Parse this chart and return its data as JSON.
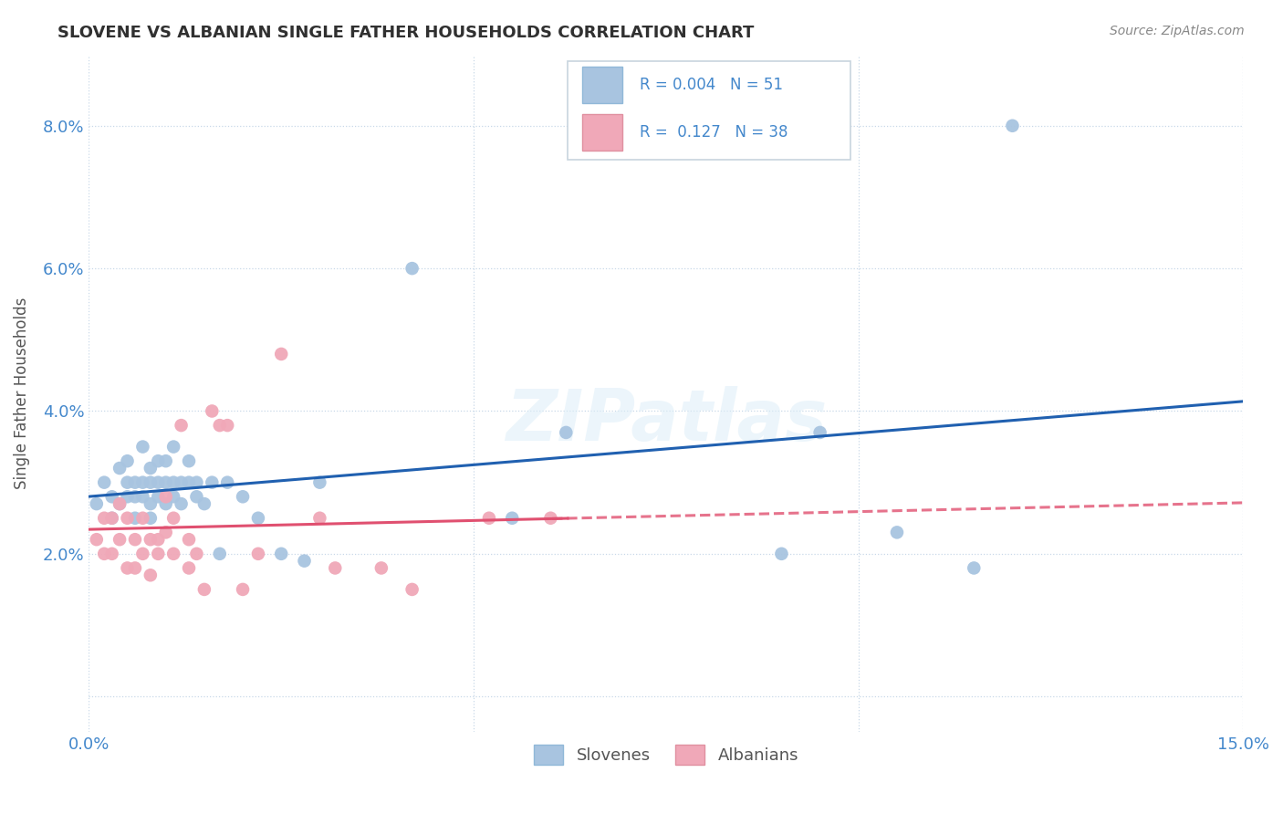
{
  "title": "SLOVENE VS ALBANIAN SINGLE FATHER HOUSEHOLDS CORRELATION CHART",
  "source": "Source: ZipAtlas.com",
  "ylabel": "Single Father Households",
  "xlim": [
    0.0,
    0.15
  ],
  "ylim": [
    -0.005,
    0.09
  ],
  "xticks": [
    0.0,
    0.05,
    0.1,
    0.15
  ],
  "yticks": [
    0.0,
    0.02,
    0.04,
    0.06,
    0.08
  ],
  "r_slovene": 0.004,
  "n_slovene": 51,
  "r_albanian": 0.127,
  "n_albanian": 38,
  "slovene_color": "#a8c4e0",
  "albanian_color": "#f0a8b8",
  "slovene_line_color": "#2060b0",
  "albanian_line_color": "#e05070",
  "background_color": "#ffffff",
  "grid_color": "#c8d8e8",
  "title_color": "#303030",
  "axis_color": "#4488cc",
  "slovene_x": [
    0.001,
    0.002,
    0.003,
    0.003,
    0.004,
    0.004,
    0.005,
    0.005,
    0.005,
    0.006,
    0.006,
    0.006,
    0.007,
    0.007,
    0.007,
    0.008,
    0.008,
    0.008,
    0.008,
    0.009,
    0.009,
    0.009,
    0.01,
    0.01,
    0.01,
    0.011,
    0.011,
    0.011,
    0.012,
    0.012,
    0.013,
    0.013,
    0.014,
    0.014,
    0.015,
    0.016,
    0.017,
    0.018,
    0.02,
    0.022,
    0.025,
    0.028,
    0.03,
    0.042,
    0.055,
    0.062,
    0.09,
    0.095,
    0.105,
    0.115,
    0.12
  ],
  "slovene_y": [
    0.027,
    0.03,
    0.025,
    0.028,
    0.032,
    0.027,
    0.03,
    0.028,
    0.033,
    0.025,
    0.03,
    0.028,
    0.03,
    0.035,
    0.028,
    0.03,
    0.027,
    0.032,
    0.025,
    0.03,
    0.033,
    0.028,
    0.03,
    0.027,
    0.033,
    0.03,
    0.035,
    0.028,
    0.03,
    0.027,
    0.033,
    0.03,
    0.028,
    0.03,
    0.027,
    0.03,
    0.02,
    0.03,
    0.028,
    0.025,
    0.02,
    0.019,
    0.03,
    0.06,
    0.025,
    0.037,
    0.02,
    0.037,
    0.023,
    0.018,
    0.08
  ],
  "albanian_x": [
    0.001,
    0.002,
    0.002,
    0.003,
    0.003,
    0.004,
    0.004,
    0.005,
    0.005,
    0.006,
    0.006,
    0.007,
    0.007,
    0.008,
    0.008,
    0.009,
    0.009,
    0.01,
    0.01,
    0.011,
    0.011,
    0.012,
    0.013,
    0.013,
    0.014,
    0.015,
    0.016,
    0.017,
    0.018,
    0.02,
    0.022,
    0.025,
    0.03,
    0.032,
    0.038,
    0.042,
    0.052,
    0.06
  ],
  "albanian_y": [
    0.022,
    0.025,
    0.02,
    0.025,
    0.02,
    0.027,
    0.022,
    0.025,
    0.018,
    0.022,
    0.018,
    0.025,
    0.02,
    0.022,
    0.017,
    0.02,
    0.022,
    0.028,
    0.023,
    0.025,
    0.02,
    0.038,
    0.022,
    0.018,
    0.02,
    0.015,
    0.04,
    0.038,
    0.038,
    0.015,
    0.02,
    0.048,
    0.025,
    0.018,
    0.018,
    0.015,
    0.025,
    0.025
  ]
}
